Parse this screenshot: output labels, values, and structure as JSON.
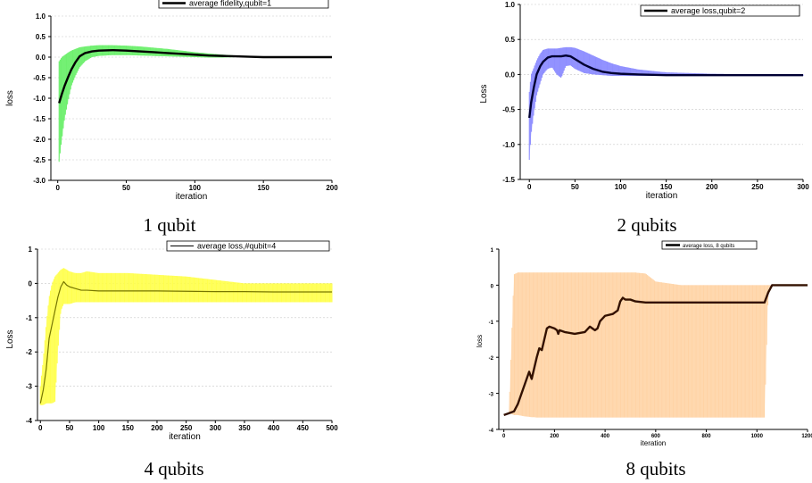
{
  "chart_data": [
    {
      "type": "line",
      "caption": "1 qubit",
      "xlabel": "iteration",
      "ylabel": "loss",
      "xlim": [
        -5,
        200
      ],
      "ylim": [
        -3.0,
        1.0
      ],
      "xticks": [
        "0",
        "50",
        "100",
        "150",
        "200"
      ],
      "yticks": [
        "1.0",
        "0.5",
        "0.0",
        "-0.5",
        "-1.0",
        "-1.5",
        "-2.0",
        "-2.5",
        "-3.0"
      ],
      "grid": true,
      "legend": "top-center",
      "band_color": "#66ee66",
      "line_color": "#000000",
      "series": [
        {
          "name": "average fidelity,qubit=1",
          "x": [
            1,
            3,
            5,
            8,
            10,
            13,
            16,
            20,
            25,
            30,
            40,
            50,
            60,
            70,
            80,
            90,
            100,
            110,
            120,
            130,
            140,
            150,
            160,
            170,
            180,
            190,
            200
          ],
          "y": [
            -1.12,
            -0.9,
            -0.7,
            -0.45,
            -0.3,
            -0.12,
            0.02,
            0.1,
            0.14,
            0.16,
            0.17,
            0.16,
            0.14,
            0.12,
            0.1,
            0.08,
            0.06,
            0.04,
            0.03,
            0.02,
            0.01,
            0.0,
            0.0,
            0.0,
            0.0,
            0.0,
            0.0
          ],
          "upper": [
            -0.1,
            0.0,
            0.05,
            0.12,
            0.16,
            0.2,
            0.24,
            0.26,
            0.28,
            0.29,
            0.29,
            0.28,
            0.26,
            0.23,
            0.2,
            0.16,
            0.12,
            0.09,
            0.06,
            0.04,
            0.02,
            0.01,
            0.01,
            0.0,
            0.0,
            0.0,
            0.0
          ],
          "lower": [
            -2.55,
            -2.0,
            -1.5,
            -1.0,
            -0.7,
            -0.45,
            -0.25,
            -0.1,
            0.0,
            0.03,
            0.05,
            0.05,
            0.04,
            0.03,
            0.02,
            0.01,
            0.0,
            -0.01,
            -0.01,
            0.0,
            0.0,
            0.0,
            0.0,
            0.0,
            0.0,
            0.0,
            0.0
          ]
        }
      ]
    },
    {
      "type": "line",
      "caption": "2 qubits",
      "xlabel": "iteration",
      "ylabel": "Loss",
      "xlim": [
        -10,
        300
      ],
      "ylim": [
        -1.5,
        1.0
      ],
      "xticks": [
        "0",
        "50",
        "100",
        "150",
        "200",
        "250",
        "300"
      ],
      "yticks": [
        "1.0",
        "0.5",
        "0.0",
        "-0.5",
        "-1.0",
        "-1.5"
      ],
      "grid": true,
      "legend": "top-right",
      "band_color": "#8888ff",
      "line_color": "#000033",
      "series": [
        {
          "name": "average loss,qubit=2",
          "x": [
            0,
            2,
            5,
            8,
            12,
            15,
            20,
            25,
            30,
            35,
            40,
            45,
            50,
            60,
            70,
            80,
            90,
            100,
            120,
            150,
            200,
            250,
            300
          ],
          "y": [
            -0.62,
            -0.4,
            -0.18,
            0.0,
            0.12,
            0.18,
            0.24,
            0.26,
            0.26,
            0.26,
            0.27,
            0.26,
            0.22,
            0.14,
            0.08,
            0.04,
            0.02,
            0.01,
            0.0,
            -0.01,
            -0.01,
            -0.01,
            -0.01
          ],
          "upper": [
            -0.25,
            0.0,
            0.1,
            0.2,
            0.3,
            0.35,
            0.37,
            0.37,
            0.37,
            0.38,
            0.39,
            0.39,
            0.38,
            0.33,
            0.27,
            0.21,
            0.16,
            0.12,
            0.07,
            0.03,
            0.01,
            0.0,
            0.0
          ],
          "lower": [
            -1.22,
            -0.85,
            -0.55,
            -0.3,
            -0.12,
            0.0,
            0.08,
            0.1,
            0.0,
            -0.05,
            0.12,
            0.13,
            0.08,
            0.02,
            0.0,
            -0.01,
            -0.02,
            -0.02,
            -0.02,
            -0.02,
            -0.02,
            -0.02,
            -0.02
          ]
        }
      ]
    },
    {
      "type": "line",
      "caption": "4 qubits",
      "xlabel": "iteration",
      "ylabel": "Loss",
      "xlim": [
        -5,
        500
      ],
      "ylim": [
        -4,
        1
      ],
      "xticks": [
        "0",
        "50",
        "100",
        "150",
        "200",
        "250",
        "300",
        "350",
        "400",
        "450",
        "500"
      ],
      "yticks": [
        "1",
        "0",
        "-1",
        "-2",
        "-3",
        "-4"
      ],
      "grid": true,
      "legend": "top-right",
      "band_color": "#ffff44",
      "line_color": "#777700",
      "series": [
        {
          "name": "average loss,#qubit=4",
          "x": [
            0,
            5,
            10,
            15,
            20,
            25,
            30,
            35,
            40,
            45,
            50,
            60,
            70,
            80,
            100,
            150,
            200,
            250,
            300,
            350,
            400,
            450,
            500
          ],
          "y": [
            -3.5,
            -3.1,
            -2.5,
            -1.6,
            -1.2,
            -0.8,
            -0.4,
            -0.1,
            0.05,
            -0.05,
            -0.1,
            -0.15,
            -0.2,
            -0.2,
            -0.22,
            -0.22,
            -0.22,
            -0.23,
            -0.24,
            -0.24,
            -0.25,
            -0.25,
            -0.25
          ],
          "upper": [
            -3.0,
            -2.2,
            -1.2,
            -0.4,
            0.0,
            0.2,
            0.3,
            0.4,
            0.45,
            0.4,
            0.35,
            0.3,
            0.3,
            0.35,
            0.3,
            0.3,
            0.25,
            0.2,
            0.1,
            0.0,
            0.0,
            0.0,
            0.0
          ],
          "lower": [
            -3.55,
            -3.55,
            -3.5,
            -3.5,
            -3.5,
            -3.45,
            -2.0,
            -0.8,
            -0.6,
            -0.6,
            -0.6,
            -0.55,
            -0.55,
            -0.55,
            -0.55,
            -0.55,
            -0.55,
            -0.55,
            -0.55,
            -0.55,
            -0.55,
            -0.55,
            -0.55
          ]
        }
      ]
    },
    {
      "type": "line",
      "caption": "8 qubits",
      "xlabel": "iteration",
      "ylabel": "loss",
      "xlim": [
        -20,
        1200
      ],
      "ylim": [
        -4,
        1
      ],
      "xticks": [
        "0",
        "200",
        "400",
        "600",
        "800",
        "1000",
        "1200"
      ],
      "yticks": [
        "1",
        "0",
        "-1",
        "-2",
        "-3",
        "-4"
      ],
      "grid": false,
      "legend": "top-right",
      "band_color": "#ffd0a0",
      "line_color": "#331100",
      "series": [
        {
          "name": "average loss, 8 qubits",
          "x": [
            0,
            20,
            40,
            55,
            70,
            85,
            100,
            110,
            120,
            130,
            140,
            150,
            160,
            170,
            180,
            200,
            210,
            215,
            220,
            240,
            280,
            320,
            340,
            350,
            360,
            370,
            380,
            400,
            430,
            450,
            460,
            470,
            480,
            500,
            520,
            560,
            600,
            700,
            800,
            900,
            1000,
            1030,
            1045,
            1060,
            1100,
            1200
          ],
          "y": [
            -3.6,
            -3.55,
            -3.5,
            -3.3,
            -3.0,
            -2.7,
            -2.4,
            -2.6,
            -2.3,
            -2.0,
            -1.75,
            -1.8,
            -1.5,
            -1.2,
            -1.15,
            -1.2,
            -1.25,
            -1.35,
            -1.25,
            -1.3,
            -1.35,
            -1.3,
            -1.15,
            -1.2,
            -1.25,
            -1.2,
            -1.0,
            -0.85,
            -0.8,
            -0.7,
            -0.45,
            -0.35,
            -0.4,
            -0.4,
            -0.45,
            -0.48,
            -0.48,
            -0.48,
            -0.48,
            -0.48,
            -0.48,
            -0.48,
            -0.2,
            0.0,
            0.0,
            0.0
          ],
          "upper": [
            -3.6,
            -3.55,
            0.3,
            0.35,
            0.35,
            0.35,
            0.35,
            0.35,
            0.35,
            0.35,
            0.35,
            0.35,
            0.35,
            0.35,
            0.35,
            0.35,
            0.35,
            0.35,
            0.35,
            0.35,
            0.35,
            0.35,
            0.35,
            0.35,
            0.35,
            0.35,
            0.35,
            0.35,
            0.35,
            0.35,
            0.35,
            0.35,
            0.35,
            0.35,
            0.35,
            0.32,
            0.1,
            0.0,
            0.0,
            0.0,
            0.0,
            0.0,
            0.0,
            0.0,
            0.0,
            0.0
          ],
          "lower": [
            -3.6,
            -3.55,
            -3.6,
            -3.6,
            -3.62,
            -3.64,
            -3.65,
            -3.66,
            -3.66,
            -3.67,
            -3.67,
            -3.67,
            -3.67,
            -3.67,
            -3.67,
            -3.67,
            -3.67,
            -3.67,
            -3.67,
            -3.67,
            -3.67,
            -3.67,
            -3.67,
            -3.67,
            -3.67,
            -3.67,
            -3.67,
            -3.67,
            -3.67,
            -3.67,
            -3.67,
            -3.67,
            -3.67,
            -3.67,
            -3.67,
            -3.67,
            -3.67,
            -3.67,
            -3.67,
            -3.67,
            -3.67,
            -3.67,
            -0.1,
            0.0,
            0.0,
            0.0
          ]
        }
      ]
    }
  ]
}
